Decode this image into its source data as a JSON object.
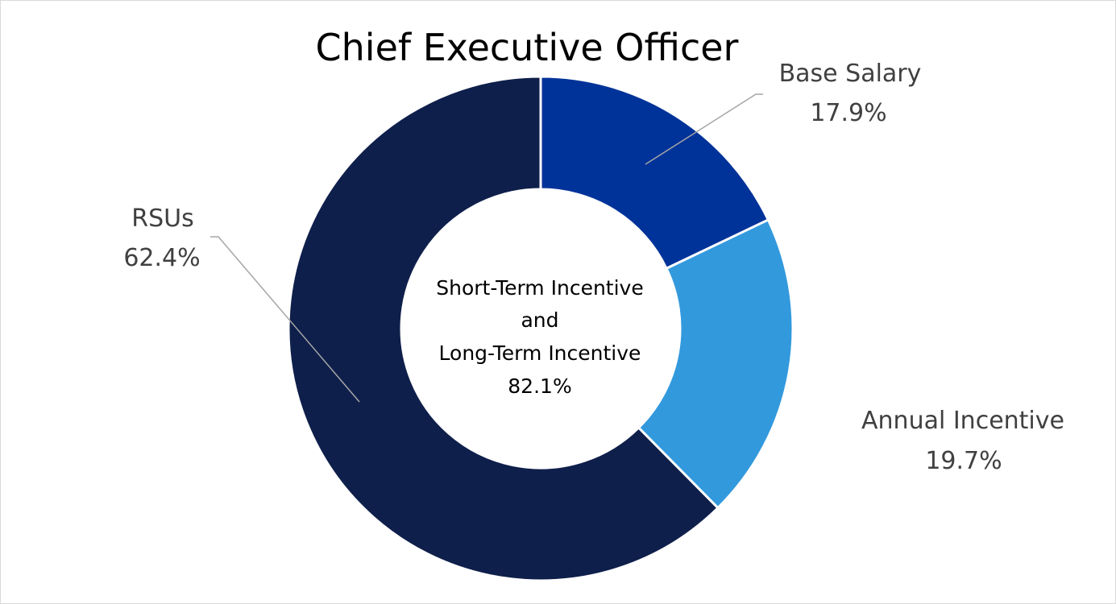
{
  "chart_data": {
    "type": "pie",
    "variant": "donut",
    "title": "Chief Executive Officer",
    "slices": [
      {
        "label": "Base Salary",
        "value": 17.9,
        "value_label": "17.9%",
        "color": "#003399"
      },
      {
        "label": "Annual Incentive",
        "value": 19.7,
        "value_label": "19.7%",
        "color": "#3399dd"
      },
      {
        "label": "RSUs",
        "value": 62.4,
        "value_label": "62.4%",
        "color": "#0f1f4b"
      }
    ],
    "center_label": {
      "lines": [
        "Short-Term Incentive",
        "and",
        "Long-Term Incentive",
        "82.1%"
      ]
    },
    "legend": "none",
    "leader_line_color": "#a6a6a6",
    "slice_border_color": "#ffffff"
  }
}
